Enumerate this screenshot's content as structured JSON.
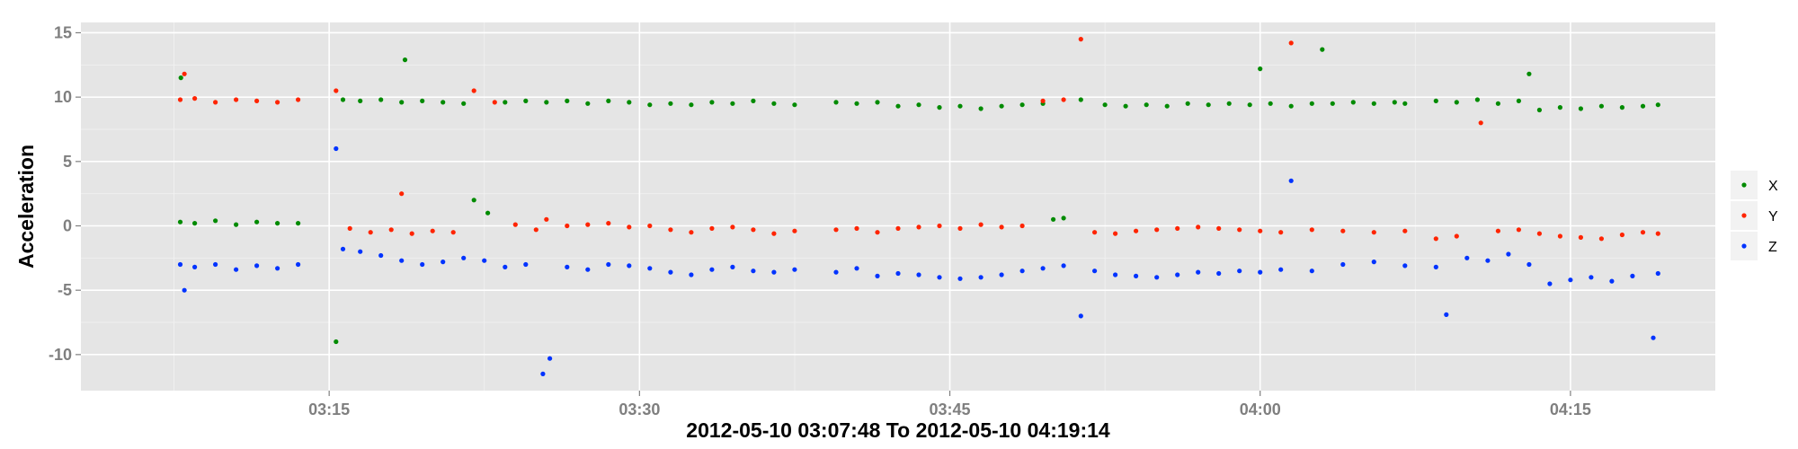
{
  "chart_data": {
    "type": "scatter",
    "title": "",
    "xlabel": "2012-05-10 03:07:48 To 2012-05-10 04:19:14",
    "ylabel": "Acceleration",
    "x_unit": "time (HH:MM), 2012-05-10",
    "xlim": [
      "03:03:00",
      "04:22:00"
    ],
    "ylim": [
      -12.8,
      15.8
    ],
    "x_ticks": [
      "03:15",
      "03:30",
      "03:45",
      "04:00",
      "04:15"
    ],
    "y_ticks": [
      15,
      10,
      5,
      0,
      -5,
      -10
    ],
    "y_tick_labels": [
      "15",
      "10",
      "5",
      "0",
      "-5",
      "-10"
    ],
    "grid": true,
    "legend_position": "right",
    "series": [
      {
        "name": "X",
        "color": "#008b00",
        "points": [
          {
            "x": "03:07:48",
            "y": 0.3
          },
          {
            "x": "03:08:30",
            "y": 0.2
          },
          {
            "x": "03:09:30",
            "y": 0.4
          },
          {
            "x": "03:10:30",
            "y": 0.1
          },
          {
            "x": "03:11:30",
            "y": 0.3
          },
          {
            "x": "03:12:30",
            "y": 0.2
          },
          {
            "x": "03:13:30",
            "y": 0.2
          },
          {
            "x": "03:07:50",
            "y": 11.5
          },
          {
            "x": "03:15:20",
            "y": -9.0
          },
          {
            "x": "03:15:40",
            "y": 9.8
          },
          {
            "x": "03:16:30",
            "y": 9.7
          },
          {
            "x": "03:17:30",
            "y": 9.8
          },
          {
            "x": "03:18:30",
            "y": 9.6
          },
          {
            "x": "03:18:40",
            "y": 12.9
          },
          {
            "x": "03:19:30",
            "y": 9.7
          },
          {
            "x": "03:20:30",
            "y": 9.6
          },
          {
            "x": "03:21:30",
            "y": 9.5
          },
          {
            "x": "03:22:00",
            "y": 2.0
          },
          {
            "x": "03:22:40",
            "y": 1.0
          },
          {
            "x": "03:23:30",
            "y": 9.6
          },
          {
            "x": "03:24:30",
            "y": 9.7
          },
          {
            "x": "03:25:30",
            "y": 9.6
          },
          {
            "x": "03:26:30",
            "y": 9.7
          },
          {
            "x": "03:27:30",
            "y": 9.5
          },
          {
            "x": "03:28:30",
            "y": 9.7
          },
          {
            "x": "03:29:30",
            "y": 9.6
          },
          {
            "x": "03:30:30",
            "y": 9.4
          },
          {
            "x": "03:31:30",
            "y": 9.5
          },
          {
            "x": "03:32:30",
            "y": 9.4
          },
          {
            "x": "03:33:30",
            "y": 9.6
          },
          {
            "x": "03:34:30",
            "y": 9.5
          },
          {
            "x": "03:35:30",
            "y": 9.7
          },
          {
            "x": "03:36:30",
            "y": 9.5
          },
          {
            "x": "03:37:30",
            "y": 9.4
          },
          {
            "x": "03:39:30",
            "y": 9.6
          },
          {
            "x": "03:40:30",
            "y": 9.5
          },
          {
            "x": "03:41:30",
            "y": 9.6
          },
          {
            "x": "03:42:30",
            "y": 9.3
          },
          {
            "x": "03:43:30",
            "y": 9.4
          },
          {
            "x": "03:44:30",
            "y": 9.2
          },
          {
            "x": "03:45:30",
            "y": 9.3
          },
          {
            "x": "03:46:30",
            "y": 9.1
          },
          {
            "x": "03:47:30",
            "y": 9.3
          },
          {
            "x": "03:48:30",
            "y": 9.4
          },
          {
            "x": "03:49:30",
            "y": 9.5
          },
          {
            "x": "03:50:00",
            "y": 0.5
          },
          {
            "x": "03:50:30",
            "y": 0.6
          },
          {
            "x": "03:51:20",
            "y": 9.8
          },
          {
            "x": "03:52:30",
            "y": 9.4
          },
          {
            "x": "03:53:30",
            "y": 9.3
          },
          {
            "x": "03:54:30",
            "y": 9.4
          },
          {
            "x": "03:55:30",
            "y": 9.3
          },
          {
            "x": "03:56:30",
            "y": 9.5
          },
          {
            "x": "03:57:30",
            "y": 9.4
          },
          {
            "x": "03:58:30",
            "y": 9.5
          },
          {
            "x": "03:59:30",
            "y": 9.4
          },
          {
            "x": "04:00:00",
            "y": 12.2
          },
          {
            "x": "04:00:30",
            "y": 9.5
          },
          {
            "x": "04:01:30",
            "y": 9.3
          },
          {
            "x": "04:02:30",
            "y": 9.5
          },
          {
            "x": "04:03:00",
            "y": 13.7
          },
          {
            "x": "04:03:30",
            "y": 9.5
          },
          {
            "x": "04:04:30",
            "y": 9.6
          },
          {
            "x": "04:05:30",
            "y": 9.5
          },
          {
            "x": "04:06:30",
            "y": 9.6
          },
          {
            "x": "04:07:00",
            "y": 9.5
          },
          {
            "x": "04:08:30",
            "y": 9.7
          },
          {
            "x": "04:09:30",
            "y": 9.6
          },
          {
            "x": "04:10:30",
            "y": 9.8
          },
          {
            "x": "04:11:30",
            "y": 9.5
          },
          {
            "x": "04:12:30",
            "y": 9.7
          },
          {
            "x": "04:13:00",
            "y": 11.8
          },
          {
            "x": "04:13:30",
            "y": 9.0
          },
          {
            "x": "04:14:30",
            "y": 9.2
          },
          {
            "x": "04:15:30",
            "y": 9.1
          },
          {
            "x": "04:16:30",
            "y": 9.3
          },
          {
            "x": "04:17:30",
            "y": 9.2
          },
          {
            "x": "04:18:30",
            "y": 9.3
          },
          {
            "x": "04:19:14",
            "y": 9.4
          }
        ]
      },
      {
        "name": "Y",
        "color": "#ff2400",
        "points": [
          {
            "x": "03:07:48",
            "y": 9.8
          },
          {
            "x": "03:08:00",
            "y": 11.8
          },
          {
            "x": "03:08:30",
            "y": 9.9
          },
          {
            "x": "03:09:30",
            "y": 9.6
          },
          {
            "x": "03:10:30",
            "y": 9.8
          },
          {
            "x": "03:11:30",
            "y": 9.7
          },
          {
            "x": "03:12:30",
            "y": 9.6
          },
          {
            "x": "03:13:30",
            "y": 9.8
          },
          {
            "x": "03:15:20",
            "y": 10.5
          },
          {
            "x": "03:16:00",
            "y": -0.2
          },
          {
            "x": "03:17:00",
            "y": -0.5
          },
          {
            "x": "03:18:00",
            "y": -0.3
          },
          {
            "x": "03:18:30",
            "y": 2.5
          },
          {
            "x": "03:19:00",
            "y": -0.6
          },
          {
            "x": "03:20:00",
            "y": -0.4
          },
          {
            "x": "03:21:00",
            "y": -0.5
          },
          {
            "x": "03:22:00",
            "y": 10.5
          },
          {
            "x": "03:23:00",
            "y": 9.6
          },
          {
            "x": "03:24:00",
            "y": 0.1
          },
          {
            "x": "03:25:00",
            "y": -0.3
          },
          {
            "x": "03:25:30",
            "y": 0.5
          },
          {
            "x": "03:26:30",
            "y": 0.0
          },
          {
            "x": "03:27:30",
            "y": 0.1
          },
          {
            "x": "03:28:30",
            "y": 0.2
          },
          {
            "x": "03:29:30",
            "y": -0.1
          },
          {
            "x": "03:30:30",
            "y": 0.0
          },
          {
            "x": "03:31:30",
            "y": -0.3
          },
          {
            "x": "03:32:30",
            "y": -0.5
          },
          {
            "x": "03:33:30",
            "y": -0.2
          },
          {
            "x": "03:34:30",
            "y": -0.1
          },
          {
            "x": "03:35:30",
            "y": -0.3
          },
          {
            "x": "03:36:30",
            "y": -0.6
          },
          {
            "x": "03:37:30",
            "y": -0.4
          },
          {
            "x": "03:39:30",
            "y": -0.3
          },
          {
            "x": "03:40:30",
            "y": -0.2
          },
          {
            "x": "03:41:30",
            "y": -0.5
          },
          {
            "x": "03:42:30",
            "y": -0.2
          },
          {
            "x": "03:43:30",
            "y": -0.1
          },
          {
            "x": "03:44:30",
            "y": 0.0
          },
          {
            "x": "03:45:30",
            "y": -0.2
          },
          {
            "x": "03:46:30",
            "y": 0.1
          },
          {
            "x": "03:47:30",
            "y": -0.1
          },
          {
            "x": "03:48:30",
            "y": 0.0
          },
          {
            "x": "03:49:30",
            "y": 9.7
          },
          {
            "x": "03:50:30",
            "y": 9.8
          },
          {
            "x": "03:51:20",
            "y": 14.5
          },
          {
            "x": "03:52:00",
            "y": -0.5
          },
          {
            "x": "03:53:00",
            "y": -0.6
          },
          {
            "x": "03:54:00",
            "y": -0.4
          },
          {
            "x": "03:55:00",
            "y": -0.3
          },
          {
            "x": "03:56:00",
            "y": -0.2
          },
          {
            "x": "03:57:00",
            "y": -0.1
          },
          {
            "x": "03:58:00",
            "y": -0.2
          },
          {
            "x": "03:59:00",
            "y": -0.3
          },
          {
            "x": "04:00:00",
            "y": -0.4
          },
          {
            "x": "04:01:00",
            "y": -0.5
          },
          {
            "x": "04:01:30",
            "y": 14.2
          },
          {
            "x": "04:02:30",
            "y": -0.3
          },
          {
            "x": "04:04:00",
            "y": -0.4
          },
          {
            "x": "04:05:30",
            "y": -0.5
          },
          {
            "x": "04:07:00",
            "y": -0.4
          },
          {
            "x": "04:08:30",
            "y": -1.0
          },
          {
            "x": "04:09:30",
            "y": -0.8
          },
          {
            "x": "04:10:40",
            "y": 8.0
          },
          {
            "x": "04:11:30",
            "y": -0.4
          },
          {
            "x": "04:12:30",
            "y": -0.3
          },
          {
            "x": "04:13:30",
            "y": -0.6
          },
          {
            "x": "04:14:30",
            "y": -0.8
          },
          {
            "x": "04:15:30",
            "y": -0.9
          },
          {
            "x": "04:16:30",
            "y": -1.0
          },
          {
            "x": "04:17:30",
            "y": -0.7
          },
          {
            "x": "04:18:30",
            "y": -0.5
          },
          {
            "x": "04:19:14",
            "y": -0.6
          }
        ]
      },
      {
        "name": "Z",
        "color": "#0033ff",
        "points": [
          {
            "x": "03:07:48",
            "y": -3.0
          },
          {
            "x": "03:08:00",
            "y": -5.0
          },
          {
            "x": "03:08:30",
            "y": -3.2
          },
          {
            "x": "03:09:30",
            "y": -3.0
          },
          {
            "x": "03:10:30",
            "y": -3.4
          },
          {
            "x": "03:11:30",
            "y": -3.1
          },
          {
            "x": "03:12:30",
            "y": -3.3
          },
          {
            "x": "03:13:30",
            "y": -3.0
          },
          {
            "x": "03:15:20",
            "y": 6.0
          },
          {
            "x": "03:15:40",
            "y": -1.8
          },
          {
            "x": "03:16:30",
            "y": -2.0
          },
          {
            "x": "03:17:30",
            "y": -2.3
          },
          {
            "x": "03:18:30",
            "y": -2.7
          },
          {
            "x": "03:19:30",
            "y": -3.0
          },
          {
            "x": "03:20:30",
            "y": -2.8
          },
          {
            "x": "03:21:30",
            "y": -2.5
          },
          {
            "x": "03:22:30",
            "y": -2.7
          },
          {
            "x": "03:23:30",
            "y": -3.2
          },
          {
            "x": "03:24:30",
            "y": -3.0
          },
          {
            "x": "03:25:20",
            "y": -11.5
          },
          {
            "x": "03:25:40",
            "y": -10.3
          },
          {
            "x": "03:26:30",
            "y": -3.2
          },
          {
            "x": "03:27:30",
            "y": -3.4
          },
          {
            "x": "03:28:30",
            "y": -3.0
          },
          {
            "x": "03:29:30",
            "y": -3.1
          },
          {
            "x": "03:30:30",
            "y": -3.3
          },
          {
            "x": "03:31:30",
            "y": -3.6
          },
          {
            "x": "03:32:30",
            "y": -3.8
          },
          {
            "x": "03:33:30",
            "y": -3.4
          },
          {
            "x": "03:34:30",
            "y": -3.2
          },
          {
            "x": "03:35:30",
            "y": -3.5
          },
          {
            "x": "03:36:30",
            "y": -3.6
          },
          {
            "x": "03:37:30",
            "y": -3.4
          },
          {
            "x": "03:39:30",
            "y": -3.6
          },
          {
            "x": "03:40:30",
            "y": -3.3
          },
          {
            "x": "03:41:30",
            "y": -3.9
          },
          {
            "x": "03:42:30",
            "y": -3.7
          },
          {
            "x": "03:43:30",
            "y": -3.8
          },
          {
            "x": "03:44:30",
            "y": -4.0
          },
          {
            "x": "03:45:30",
            "y": -4.1
          },
          {
            "x": "03:46:30",
            "y": -4.0
          },
          {
            "x": "03:47:30",
            "y": -3.8
          },
          {
            "x": "03:48:30",
            "y": -3.5
          },
          {
            "x": "03:49:30",
            "y": -3.3
          },
          {
            "x": "03:50:30",
            "y": -3.1
          },
          {
            "x": "03:51:20",
            "y": -7.0
          },
          {
            "x": "03:52:00",
            "y": -3.5
          },
          {
            "x": "03:53:00",
            "y": -3.8
          },
          {
            "x": "03:54:00",
            "y": -3.9
          },
          {
            "x": "03:55:00",
            "y": -4.0
          },
          {
            "x": "03:56:00",
            "y": -3.8
          },
          {
            "x": "03:57:00",
            "y": -3.6
          },
          {
            "x": "03:58:00",
            "y": -3.7
          },
          {
            "x": "03:59:00",
            "y": -3.5
          },
          {
            "x": "04:00:00",
            "y": -3.6
          },
          {
            "x": "04:01:00",
            "y": -3.4
          },
          {
            "x": "04:01:30",
            "y": 3.5
          },
          {
            "x": "04:02:30",
            "y": -3.5
          },
          {
            "x": "04:04:00",
            "y": -3.0
          },
          {
            "x": "04:05:30",
            "y": -2.8
          },
          {
            "x": "04:07:00",
            "y": -3.1
          },
          {
            "x": "04:08:30",
            "y": -3.2
          },
          {
            "x": "04:09:00",
            "y": -6.9
          },
          {
            "x": "04:10:00",
            "y": -2.5
          },
          {
            "x": "04:11:00",
            "y": -2.7
          },
          {
            "x": "04:12:00",
            "y": -2.2
          },
          {
            "x": "04:13:00",
            "y": -3.0
          },
          {
            "x": "04:14:00",
            "y": -4.5
          },
          {
            "x": "04:15:00",
            "y": -4.2
          },
          {
            "x": "04:16:00",
            "y": -4.0
          },
          {
            "x": "04:17:00",
            "y": -4.3
          },
          {
            "x": "04:18:00",
            "y": -3.9
          },
          {
            "x": "04:19:00",
            "y": -8.7
          },
          {
            "x": "04:19:14",
            "y": -3.7
          }
        ]
      }
    ]
  },
  "colors": {
    "panel_background": "#e5e5e5",
    "grid_major": "#ffffff",
    "grid_minor": "#f2f2f2",
    "tick_text": "#7f7f7f",
    "legend_key_background": "#f2f2f2"
  }
}
